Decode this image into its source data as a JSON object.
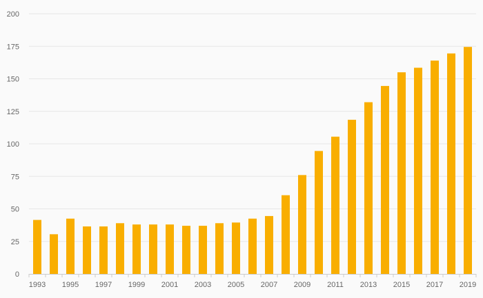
{
  "chart_data": {
    "type": "bar",
    "title": "",
    "xlabel": "",
    "ylabel": "",
    "ylim": [
      0,
      200
    ],
    "yticks": [
      0,
      25,
      50,
      75,
      100,
      125,
      150,
      175,
      200
    ],
    "categories": [
      "1993",
      "1994",
      "1995",
      "1996",
      "1997",
      "1998",
      "1999",
      "2000",
      "2001",
      "2002",
      "2003",
      "2004",
      "2005",
      "2006",
      "2007",
      "2008",
      "2009",
      "2010",
      "2011",
      "2012",
      "2013",
      "2014",
      "2015",
      "2016",
      "2017",
      "2018",
      "2019"
    ],
    "x_tick_labels": [
      "1993",
      "",
      "1995",
      "",
      "1997",
      "",
      "1999",
      "",
      "2001",
      "",
      "2003",
      "",
      "2005",
      "",
      "2007",
      "",
      "2009",
      "",
      "2011",
      "",
      "2013",
      "",
      "2015",
      "",
      "2017",
      "",
      "2019"
    ],
    "series": [
      {
        "name": "Value",
        "color": "#f9ae00",
        "values": [
          41.5,
          30.5,
          42.5,
          36.5,
          36.5,
          39,
          38,
          38,
          38,
          37,
          37,
          39,
          39.5,
          42.5,
          44.5,
          60.5,
          76,
          94.5,
          105.5,
          118.5,
          132,
          144.5,
          155,
          158.5,
          164,
          169.5,
          174.5
        ]
      }
    ],
    "grid": true,
    "legend": "none"
  }
}
